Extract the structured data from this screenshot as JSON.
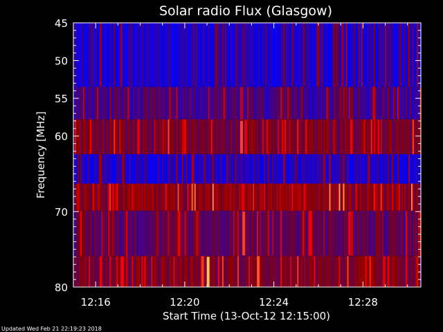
{
  "chart_data": {
    "type": "heatmap",
    "title": "Solar radio Flux (Glasgow)",
    "xlabel": "Start Time (13-Oct-12 12:15:00)",
    "ylabel": "Frequency [MHz]",
    "y_ticks": [
      45,
      50,
      55,
      60,
      70,
      80
    ],
    "x_ticks": [
      "12:16",
      "12:20",
      "12:24",
      "12:28"
    ],
    "x_range_minutes_after_start": [
      0,
      15.6
    ],
    "y_range_mhz": [
      45,
      80
    ],
    "y_orientation": "increasing downward",
    "colormap": [
      "#0000ff",
      "#8b0000",
      "#ff0000",
      "#ffff80"
    ],
    "frequency_bands": [
      {
        "from_mhz": 45,
        "to_mhz": 53.5,
        "level": 0.1
      },
      {
        "from_mhz": 53.5,
        "to_mhz": 57.8,
        "level": 0.22
      },
      {
        "from_mhz": 57.8,
        "to_mhz": 62.4,
        "level": 0.38
      },
      {
        "from_mhz": 62.4,
        "to_mhz": 66.3,
        "level": 0.1
      },
      {
        "from_mhz": 66.3,
        "to_mhz": 69.9,
        "level": 0.45
      },
      {
        "from_mhz": 69.9,
        "to_mhz": 75.9,
        "level": 0.3
      },
      {
        "from_mhz": 75.9,
        "to_mhz": 80,
        "level": 0.4
      }
    ],
    "bursts_minutes_after_start": [
      {
        "t": 7.55,
        "from_mhz": 58,
        "to_mhz": 62.3,
        "level": 0.85
      },
      {
        "t": 7.65,
        "from_mhz": 70,
        "to_mhz": 75.8,
        "level": 0.85
      },
      {
        "t": 6.05,
        "from_mhz": 76,
        "to_mhz": 80,
        "level": 0.95
      },
      {
        "t": 12.4,
        "from_mhz": 70,
        "to_mhz": 75.8,
        "level": 0.75
      },
      {
        "t": 2.2,
        "from_mhz": 76,
        "to_mhz": 80,
        "level": 0.8
      }
    ]
  },
  "footer": {
    "updated": "Updated Wed Feb 21 22:19:23 2018"
  }
}
